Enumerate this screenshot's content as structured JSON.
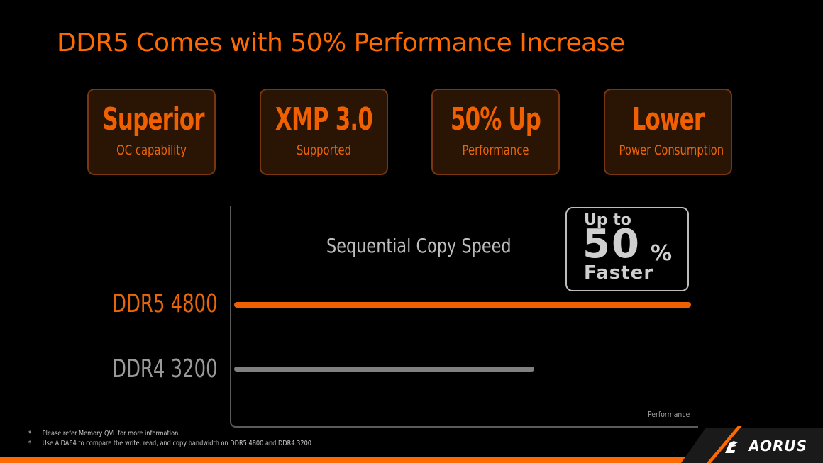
{
  "header": {
    "title": "DDR5 Comes with 50% Performance Increase"
  },
  "feature_cards": [
    {
      "big": "Superior",
      "small": "OC capability"
    },
    {
      "big": "XMP 3.0",
      "small": "Supported"
    },
    {
      "big": "50% Up",
      "small": "Performance"
    },
    {
      "big": "Lower",
      "small": "Power Consumption"
    }
  ],
  "badge": {
    "line1": "Up to",
    "number": "50",
    "percent": "%",
    "line3": "Faster"
  },
  "colors": {
    "accent": "#ff6a00",
    "ddr5": "#f06000",
    "ddr4": "#808080",
    "card_bg": "#2a1404",
    "card_border": "#7a3610"
  },
  "chart_data": {
    "type": "bar",
    "orientation": "horizontal",
    "title": "Sequential Copy Speed",
    "xlabel": "Performance",
    "ylabel": "",
    "categories": [
      "DDR5 4800",
      "DDR4 3200"
    ],
    "values": [
      150,
      100
    ],
    "annotation": "Up to 50% Faster",
    "grid": false,
    "colors": [
      "#f06000",
      "#808080"
    ]
  },
  "chart_labels": {
    "ddr5": "DDR5 4800",
    "ddr4": "DDR4 3200",
    "title": "Sequential Copy Speed",
    "xlabel": "Performance"
  },
  "footnotes": [
    "Please refer Memory QVL for more information.",
    "Use AIDA64 to compare the write, read, and copy bandwidth on DDR5 4800 and DDR4 3200"
  ],
  "footnote_bullet": "*",
  "logo": {
    "text": "AORUS"
  }
}
